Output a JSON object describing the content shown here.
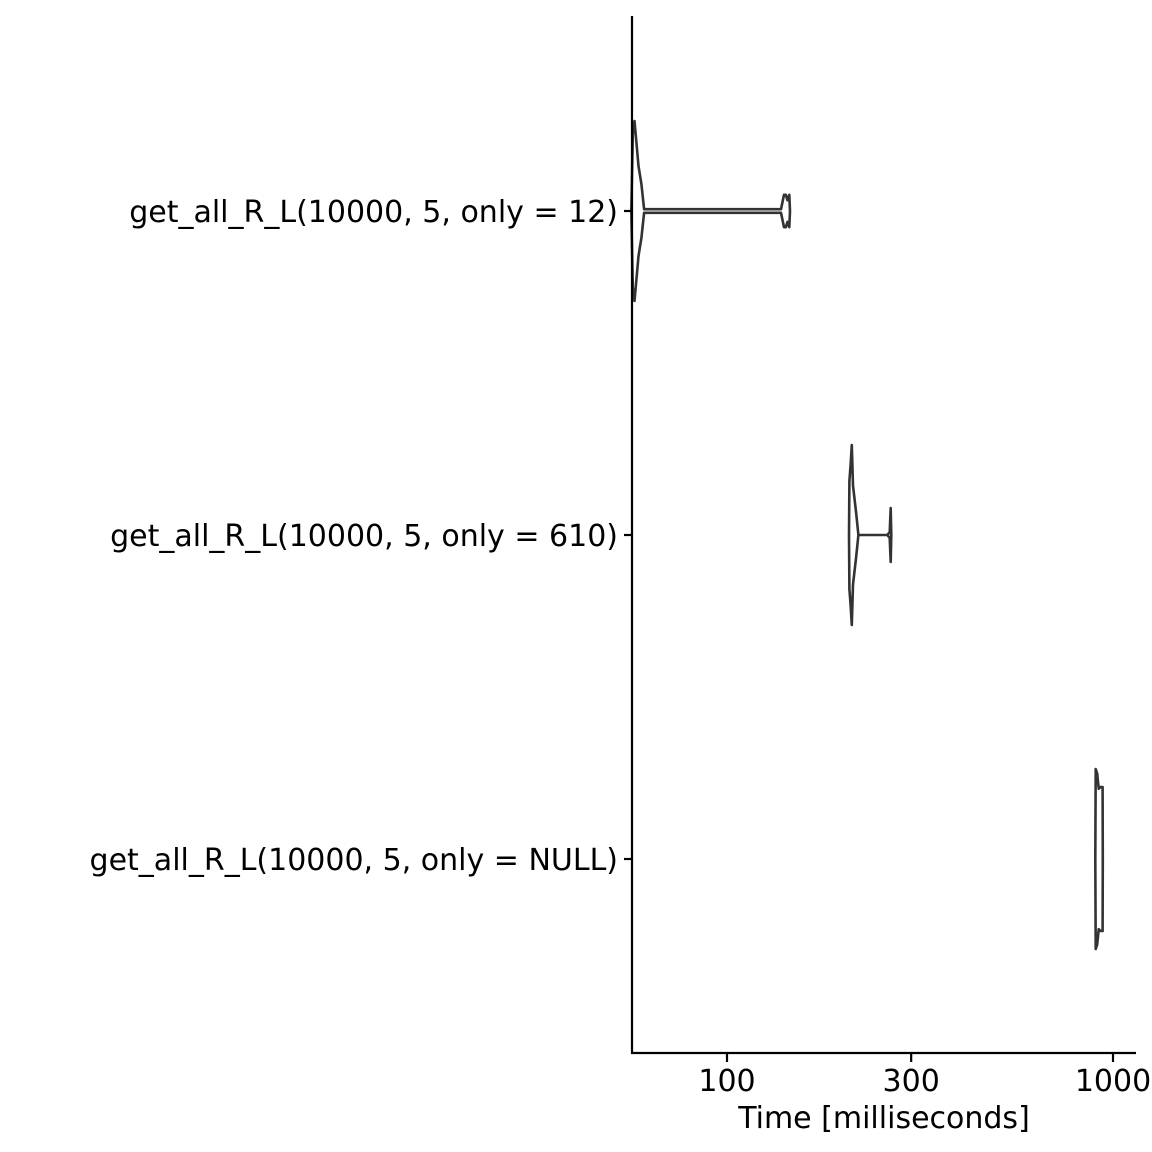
{
  "chart_data": {
    "type": "violin",
    "orientation": "horizontal",
    "xlabel": "Time [milliseconds]",
    "ylabel": "",
    "x_scale": "log10",
    "xlim": [
      50,
      1050
    ],
    "x_ticks": [
      100,
      300,
      1000
    ],
    "x_tick_labels": [
      "100",
      "300",
      "1000"
    ],
    "grid": false,
    "legend": "none",
    "outline_color": "#333333",
    "fill_color": "#ffffff",
    "categories": [
      "get_all_R_L(10000, 5, only = 12)",
      "get_all_R_L(10000, 5, only = 610)",
      "get_all_R_L(10000, 5, only = NULL)"
    ],
    "series": [
      {
        "category": "get_all_R_L(10000, 5, only = 12)",
        "profile": [
          [
            56.5,
            0.0
          ],
          [
            57.0,
            0.85
          ],
          [
            57.6,
            1.0
          ],
          [
            59.0,
            0.5
          ],
          [
            60.0,
            0.3
          ],
          [
            61.0,
            0.02
          ],
          [
            110,
            0.02
          ],
          [
            138,
            0.02
          ],
          [
            140.5,
            0.18
          ],
          [
            142,
            0.18
          ],
          [
            143.5,
            0.12
          ],
          [
            145,
            0.18
          ],
          [
            145.6,
            0.0
          ]
        ]
      },
      {
        "category": "get_all_R_L(10000, 5, only = 610)",
        "profile": [
          [
            207,
            0.0
          ],
          [
            207.5,
            0.6
          ],
          [
            209,
            0.78
          ],
          [
            210.5,
            1.0
          ],
          [
            212,
            0.55
          ],
          [
            216,
            0.25
          ],
          [
            219,
            0.0
          ],
          [
            230,
            0.0
          ],
          [
            260,
            0.0
          ],
          [
            264,
            0.03
          ],
          [
            265.5,
            0.3
          ],
          [
            266.5,
            0.0
          ]
        ]
      },
      {
        "category": "get_all_R_L(10000, 5, only = NULL)",
        "profile": [
          [
            900,
            0.0
          ],
          [
            902,
            1.0
          ],
          [
            910,
            0.95
          ],
          [
            918,
            0.78
          ],
          [
            928,
            0.8
          ],
          [
            940,
            0.8
          ],
          [
            941,
            0.0
          ]
        ]
      }
    ]
  }
}
